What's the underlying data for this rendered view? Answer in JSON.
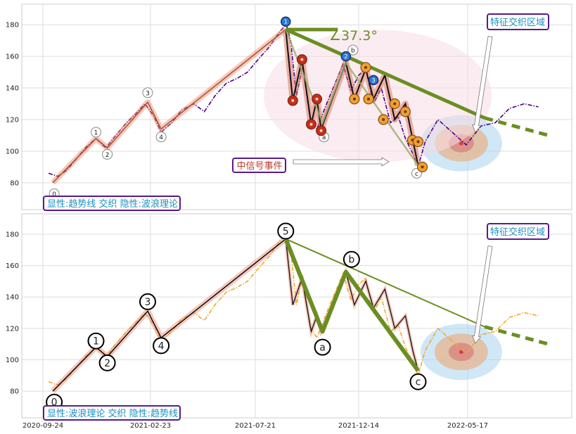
{
  "chart_data": [
    {
      "type": "line",
      "panel": "top",
      "caption": "显性:趋势线 交织 隐性:波浪理论",
      "ylim": [
        63,
        193
      ],
      "yticks": [
        80,
        100,
        120,
        140,
        160,
        180
      ],
      "grid": true,
      "series": [
        {
          "style": "dash-dot price line (purple)",
          "color": "#4b0082",
          "points": [
            [
              "2020-10-02",
              86
            ],
            [
              "2020-10-15",
              84
            ],
            [
              "2020-10-28",
              88
            ],
            [
              "2020-11-10",
              95
            ],
            [
              "2020-11-25",
              103
            ],
            [
              "2020-12-08",
              108
            ],
            [
              "2020-12-22",
              102
            ],
            [
              "2021-01-05",
              110
            ],
            [
              "2021-01-20",
              118
            ],
            [
              "2021-02-03",
              124
            ],
            [
              "2021-02-15",
              130
            ],
            [
              "2021-02-28",
              122
            ],
            [
              "2021-03-10",
              112
            ],
            [
              "2021-03-25",
              118
            ],
            [
              "2021-04-08",
              126
            ],
            [
              "2021-04-25",
              130
            ],
            [
              "2021-05-10",
              125
            ],
            [
              "2021-05-25",
              135
            ],
            [
              "2021-06-10",
              143
            ],
            [
              "2021-06-25",
              146
            ],
            [
              "2021-07-10",
              150
            ],
            [
              "2021-07-25",
              158
            ],
            [
              "2021-08-10",
              166
            ],
            [
              "2021-08-25",
              176
            ],
            [
              "2021-09-03",
              180
            ],
            [
              "2021-09-09",
              170
            ],
            [
              "2021-09-17",
              135
            ],
            [
              "2021-09-26",
              154
            ],
            [
              "2021-10-06",
              122
            ],
            [
              "2021-10-16",
              114
            ],
            [
              "2021-10-28",
              128
            ],
            [
              "2021-11-08",
              140
            ],
            [
              "2021-11-22",
              155
            ],
            [
              "2021-12-03",
              138
            ],
            [
              "2021-12-14",
              148
            ],
            [
              "2021-12-24",
              152
            ],
            [
              "2022-01-04",
              130
            ],
            [
              "2022-01-15",
              140
            ],
            [
              "2022-01-28",
              118
            ],
            [
              "2022-02-08",
              122
            ],
            [
              "2022-02-18",
              108
            ],
            [
              "2022-03-01",
              98
            ],
            [
              "2022-03-08",
              90
            ],
            [
              "2022-03-18",
              106
            ],
            [
              "2022-04-05",
              120
            ],
            [
              "2022-04-25",
              112
            ],
            [
              "2022-05-15",
              104
            ],
            [
              "2022-06-05",
              116
            ],
            [
              "2022-06-25",
              118
            ],
            [
              "2022-07-15",
              127
            ],
            [
              "2022-08-05",
              130
            ],
            [
              "2022-08-25",
              128
            ]
          ]
        }
      ],
      "wave_labels": [
        {
          "label": "0",
          "x": "2020-10-10",
          "y": 73
        },
        {
          "label": "1",
          "x": "2020-12-08",
          "y": 112
        },
        {
          "label": "2",
          "x": "2020-12-24",
          "y": 98
        },
        {
          "label": "3",
          "x": "2021-02-19",
          "y": 137
        },
        {
          "label": "4",
          "x": "2021-03-10",
          "y": 109
        },
        {
          "label": "b",
          "x": "2021-12-06",
          "y": 164
        },
        {
          "label": "a",
          "x": "2021-10-26",
          "y": 109
        },
        {
          "label": "c",
          "x": "2022-03-06",
          "y": 86
        }
      ],
      "wave_markers": [
        "1",
        "2",
        "3"
      ],
      "angle_annotation": "∠37.3°",
      "annotations": [
        "中信号事件",
        "特征交织区域"
      ]
    },
    {
      "type": "line",
      "panel": "bottom",
      "caption": "显性:波浪理论 交织 隐性:趋势线",
      "ylim": [
        63,
        193
      ],
      "yticks": [
        80,
        100,
        120,
        140,
        160,
        180
      ],
      "grid": true,
      "x_ticks": [
        "2020-09-24",
        "2021-02-23",
        "2021-07-21",
        "2021-12-14",
        "2022-05-17"
      ],
      "series": [
        {
          "style": "dash-dot price line (orange)",
          "color": "#f0a830",
          "points": [
            [
              "2020-10-02",
              86
            ],
            [
              "2020-10-15",
              84
            ],
            [
              "2020-10-28",
              88
            ],
            [
              "2020-11-10",
              95
            ],
            [
              "2020-11-25",
              103
            ],
            [
              "2020-12-08",
              108
            ],
            [
              "2020-12-22",
              102
            ],
            [
              "2021-01-05",
              110
            ],
            [
              "2021-01-20",
              118
            ],
            [
              "2021-02-03",
              124
            ],
            [
              "2021-02-15",
              130
            ],
            [
              "2021-02-28",
              122
            ],
            [
              "2021-03-10",
              112
            ],
            [
              "2021-03-25",
              118
            ],
            [
              "2021-04-08",
              126
            ],
            [
              "2021-04-25",
              130
            ],
            [
              "2021-05-10",
              125
            ],
            [
              "2021-05-25",
              135
            ],
            [
              "2021-06-10",
              143
            ],
            [
              "2021-06-25",
              146
            ],
            [
              "2021-07-10",
              150
            ],
            [
              "2021-07-25",
              158
            ],
            [
              "2021-08-10",
              166
            ],
            [
              "2021-08-25",
              176
            ],
            [
              "2021-09-03",
              180
            ],
            [
              "2021-09-09",
              170
            ],
            [
              "2021-09-17",
              135
            ],
            [
              "2021-09-26",
              154
            ],
            [
              "2021-10-06",
              122
            ],
            [
              "2021-10-16",
              114
            ],
            [
              "2021-10-28",
              128
            ],
            [
              "2021-11-08",
              140
            ],
            [
              "2021-11-22",
              155
            ],
            [
              "2021-12-03",
              138
            ],
            [
              "2021-12-14",
              148
            ],
            [
              "2021-12-24",
              152
            ],
            [
              "2022-01-04",
              130
            ],
            [
              "2022-01-15",
              140
            ],
            [
              "2022-01-28",
              118
            ],
            [
              "2022-02-08",
              122
            ],
            [
              "2022-02-18",
              108
            ],
            [
              "2022-03-01",
              98
            ],
            [
              "2022-03-08",
              90
            ],
            [
              "2022-03-18",
              106
            ],
            [
              "2022-04-05",
              120
            ],
            [
              "2022-04-25",
              112
            ],
            [
              "2022-05-15",
              104
            ],
            [
              "2022-06-05",
              116
            ],
            [
              "2022-06-25",
              118
            ],
            [
              "2022-07-15",
              127
            ],
            [
              "2022-08-05",
              130
            ],
            [
              "2022-08-25",
              128
            ]
          ]
        }
      ],
      "wave_labels": [
        {
          "label": "0",
          "x": "2020-10-10",
          "y": 73
        },
        {
          "label": "1",
          "x": "2020-12-08",
          "y": 112
        },
        {
          "label": "2",
          "x": "2020-12-24",
          "y": 98
        },
        {
          "label": "3",
          "x": "2021-02-19",
          "y": 137
        },
        {
          "label": "4",
          "x": "2021-03-10",
          "y": 109
        },
        {
          "label": "5",
          "x": "2021-09-02",
          "y": 182
        },
        {
          "label": "b",
          "x": "2021-12-04",
          "y": 164
        },
        {
          "label": "a",
          "x": "2021-10-24",
          "y": 108
        },
        {
          "label": "c",
          "x": "2022-03-08",
          "y": 86
        }
      ],
      "annotations": [
        "特征交织区域"
      ]
    }
  ],
  "colors": {
    "trend": "#6b8e23",
    "highlight": "#e8826a",
    "accent": "#5a1a8a",
    "caption": "#1a8fbf",
    "event_text": "#c0392b",
    "zone_blue": "#a9d4ee",
    "zone_orange": "#e9b189",
    "zone_red": "#d84040"
  }
}
